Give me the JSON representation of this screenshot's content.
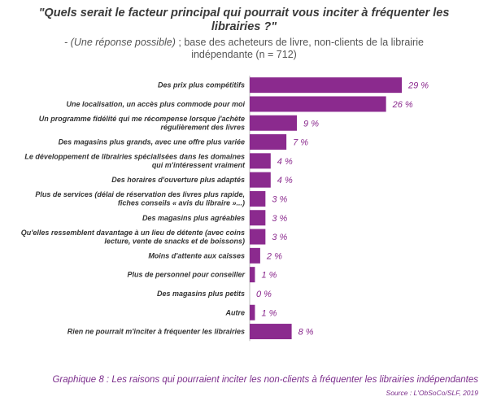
{
  "header": {
    "title_line1": "\"Quels serait le facteur principal qui pourrait vous inciter à fréquenter les",
    "title_line2": "librairies ?\"",
    "subtitle_italic": "- (Une réponse possible)",
    "subtitle_rest": " ; base des acheteurs de livre, non-clients de la librairie",
    "subtitle_line2": "indépendante (n = 712)"
  },
  "chart_data": {
    "type": "bar",
    "orientation": "horizontal",
    "bar_color": "#8b2a8e",
    "label_color": "#8b2a8e",
    "grid": false,
    "legend": "none",
    "xlim": [
      0,
      29
    ],
    "categories": [
      [
        "Des prix plus compétitifs"
      ],
      [
        "Une localisation, un accès plus commode pour moi"
      ],
      [
        "Un programme fidélité qui me récompense lorsque j'achète",
        "régulièrement des livres"
      ],
      [
        "Des magasins plus grands, avec une offre plus variée"
      ],
      [
        "Le développement de librairies spécialisées dans les domaines",
        "qui m'intéressent vraiment"
      ],
      [
        "Des horaires d'ouverture plus adaptés"
      ],
      [
        "Plus de services (délai de réservation des livres plus rapide,",
        "fiches conseils « avis du libraire »...)"
      ],
      [
        "Des magasins plus agréables"
      ],
      [
        "Qu'elles ressemblent davantage à un lieu de détente (avec coins",
        "lecture, vente de snacks et de boissons)"
      ],
      [
        "Moins d'attente aux caisses"
      ],
      [
        "Plus de personnel pour conseiller"
      ],
      [
        "Des magasins plus petits"
      ],
      [
        "Autre"
      ],
      [
        "Rien ne pourrait m'inciter à fréquenter les librairies"
      ]
    ],
    "values": [
      29,
      26,
      9,
      7,
      4,
      4,
      3,
      3,
      3,
      2,
      1,
      0,
      1,
      8
    ],
    "value_labels": [
      "29 %",
      "26 %",
      "9 %",
      "7 %",
      "4 %",
      "4 %",
      "3 %",
      "3 %",
      "3 %",
      "2 %",
      "1 %",
      "0 %",
      "1 %",
      "8 %"
    ]
  },
  "footer": {
    "caption": "Graphique 8 : Les raisons qui pourraient inciter les non-clients à fréquenter les librairies indépendantes",
    "source": "Source : L'ObSoCo/SLF, 2019"
  }
}
